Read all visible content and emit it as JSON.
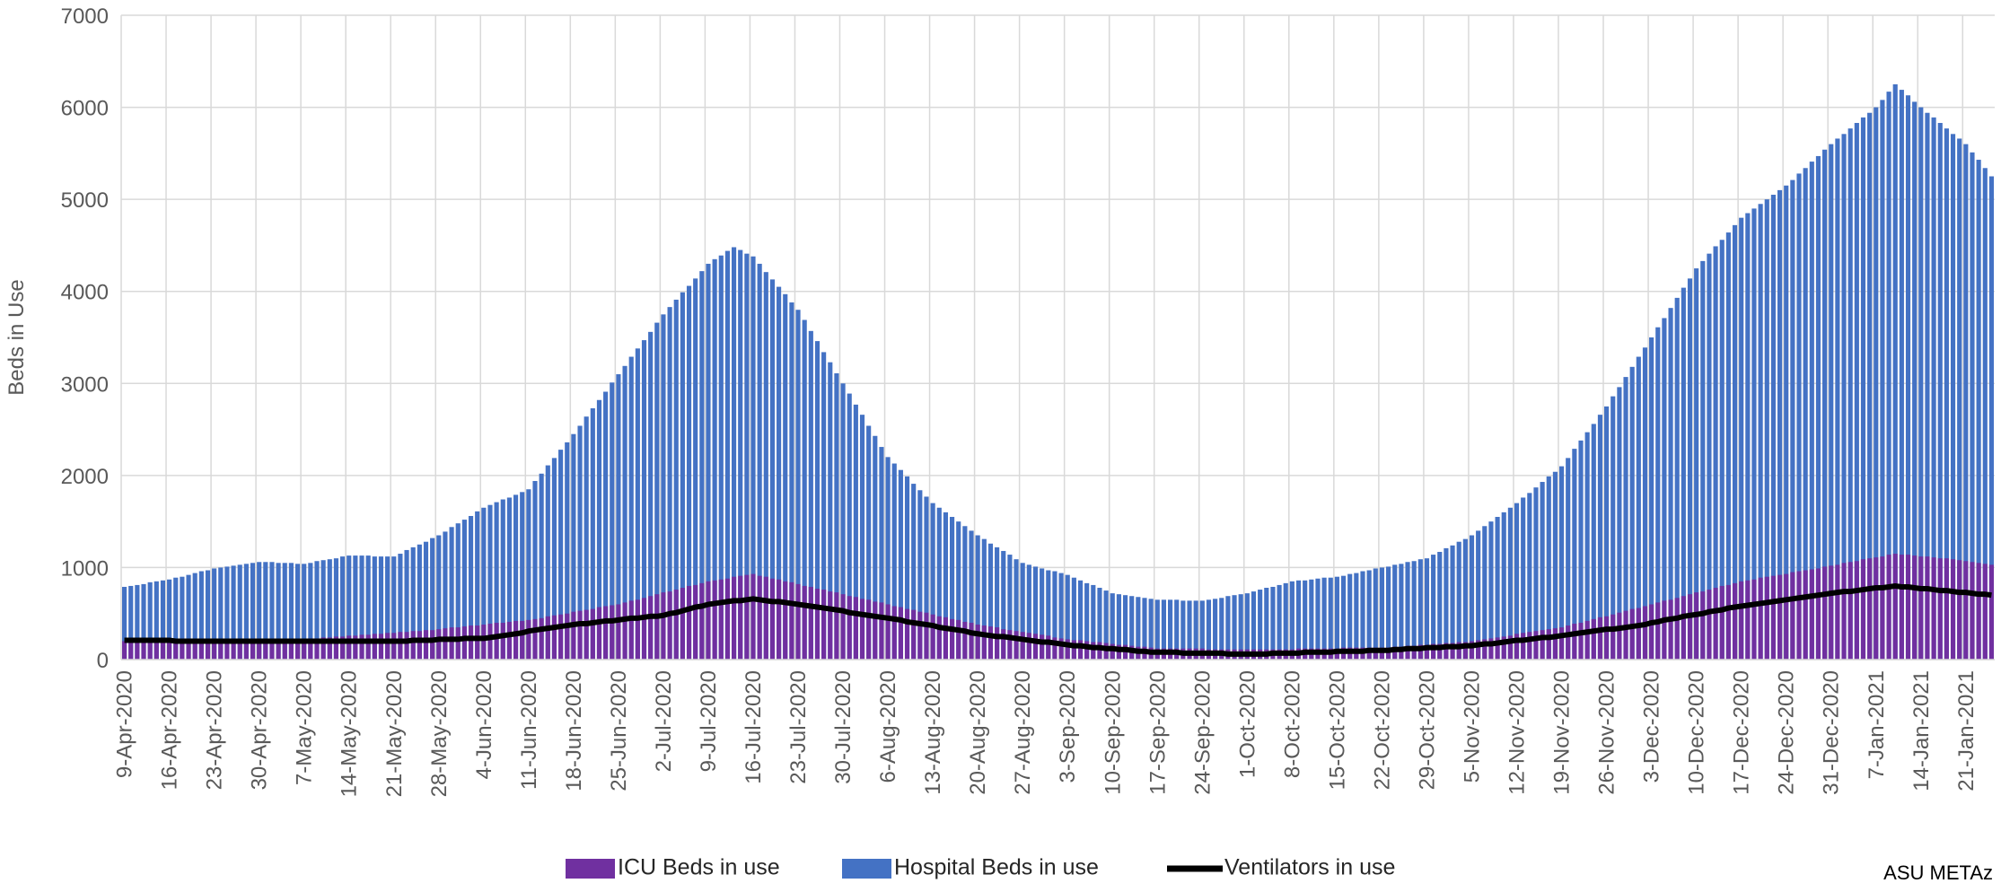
{
  "chart_data": {
    "type": "bar",
    "y_label": "Beds in Use",
    "source": "ASU METAz",
    "ylim": [
      0,
      7000
    ],
    "yticks": [
      0,
      1000,
      2000,
      3000,
      4000,
      5000,
      6000,
      7000
    ],
    "grid": true,
    "legend": "bottom",
    "categories": [
      "9-Apr-2020",
      null,
      null,
      null,
      null,
      null,
      null,
      "16-Apr-2020",
      null,
      null,
      null,
      null,
      null,
      null,
      "23-Apr-2020",
      null,
      null,
      null,
      null,
      null,
      null,
      "30-Apr-2020",
      null,
      null,
      null,
      null,
      null,
      null,
      "7-May-2020",
      null,
      null,
      null,
      null,
      null,
      null,
      "14-May-2020",
      null,
      null,
      null,
      null,
      null,
      null,
      "21-May-2020",
      null,
      null,
      null,
      null,
      null,
      null,
      "28-May-2020",
      null,
      null,
      null,
      null,
      null,
      null,
      "4-Jun-2020",
      null,
      null,
      null,
      null,
      null,
      null,
      "11-Jun-2020",
      null,
      null,
      null,
      null,
      null,
      null,
      "18-Jun-2020",
      null,
      null,
      null,
      null,
      null,
      null,
      "25-Jun-2020",
      null,
      null,
      null,
      null,
      null,
      null,
      "2-Jul-2020",
      null,
      null,
      null,
      null,
      null,
      null,
      "9-Jul-2020",
      null,
      null,
      null,
      null,
      null,
      null,
      "16-Jul-2020",
      null,
      null,
      null,
      null,
      null,
      null,
      "23-Jul-2020",
      null,
      null,
      null,
      null,
      null,
      null,
      "30-Jul-2020",
      null,
      null,
      null,
      null,
      null,
      null,
      "6-Aug-2020",
      null,
      null,
      null,
      null,
      null,
      null,
      "13-Aug-2020",
      null,
      null,
      null,
      null,
      null,
      null,
      "20-Aug-2020",
      null,
      null,
      null,
      null,
      null,
      null,
      "27-Aug-2020",
      null,
      null,
      null,
      null,
      null,
      null,
      "3-Sep-2020",
      null,
      null,
      null,
      null,
      null,
      null,
      "10-Sep-2020",
      null,
      null,
      null,
      null,
      null,
      null,
      "17-Sep-2020",
      null,
      null,
      null,
      null,
      null,
      null,
      "24-Sep-2020",
      null,
      null,
      null,
      null,
      null,
      null,
      "1-Oct-2020",
      null,
      null,
      null,
      null,
      null,
      null,
      "8-Oct-2020",
      null,
      null,
      null,
      null,
      null,
      null,
      "15-Oct-2020",
      null,
      null,
      null,
      null,
      null,
      null,
      "22-Oct-2020",
      null,
      null,
      null,
      null,
      null,
      null,
      "29-Oct-2020",
      null,
      null,
      null,
      null,
      null,
      null,
      "5-Nov-2020",
      null,
      null,
      null,
      null,
      null,
      null,
      "12-Nov-2020",
      null,
      null,
      null,
      null,
      null,
      null,
      "19-Nov-2020",
      null,
      null,
      null,
      null,
      null,
      null,
      "26-Nov-2020",
      null,
      null,
      null,
      null,
      null,
      null,
      "3-Dec-2020",
      null,
      null,
      null,
      null,
      null,
      null,
      "10-Dec-2020",
      null,
      null,
      null,
      null,
      null,
      null,
      "17-Dec-2020",
      null,
      null,
      null,
      null,
      null,
      null,
      "24-Dec-2020",
      null,
      null,
      null,
      null,
      null,
      null,
      "31-Dec-2020",
      null,
      null,
      null,
      null,
      null,
      null,
      "7-Jan-2021",
      null,
      null,
      null,
      null,
      null,
      null,
      "14-Jan-2021",
      null,
      null,
      null,
      null,
      null,
      null,
      "21-Jan-2021",
      null,
      null,
      null,
      null
    ],
    "series": [
      {
        "name": "ICU Beds in use",
        "color": "#7030a0",
        "kind": "bar",
        "values": [
          200,
          200,
          200,
          200,
          200,
          200,
          200,
          200,
          200,
          200,
          200,
          200,
          200,
          200,
          210,
          210,
          210,
          210,
          210,
          210,
          210,
          220,
          220,
          220,
          220,
          220,
          220,
          220,
          220,
          230,
          230,
          240,
          240,
          250,
          250,
          260,
          260,
          270,
          270,
          280,
          280,
          290,
          290,
          300,
          300,
          310,
          310,
          320,
          320,
          330,
          340,
          350,
          350,
          360,
          370,
          370,
          380,
          390,
          400,
          400,
          410,
          420,
          420,
          430,
          440,
          450,
          470,
          480,
          490,
          500,
          520,
          530,
          540,
          550,
          570,
          580,
          590,
          600,
          620,
          640,
          650,
          670,
          690,
          710,
          730,
          740,
          760,
          780,
          800,
          810,
          830,
          850,
          860,
          870,
          880,
          900,
          910,
          920,
          930,
          910,
          900,
          880,
          870,
          850,
          840,
          820,
          800,
          790,
          770,
          760,
          740,
          730,
          710,
          690,
          680,
          660,
          650,
          630,
          620,
          600,
          580,
          570,
          550,
          540,
          520,
          510,
          490,
          470,
          460,
          440,
          430,
          410,
          400,
          380,
          370,
          360,
          350,
          330,
          320,
          310,
          300,
          290,
          280,
          270,
          260,
          240,
          230,
          220,
          210,
          210,
          200,
          190,
          190,
          180,
          170,
          160,
          160,
          150,
          140,
          140,
          130,
          120,
          120,
          120,
          120,
          120,
          120,
          120,
          120,
          110,
          110,
          110,
          110,
          110,
          110,
          110,
          110,
          110,
          110,
          110,
          110,
          110,
          110,
          120,
          120,
          120,
          120,
          120,
          120,
          120,
          130,
          130,
          130,
          130,
          130,
          130,
          130,
          130,
          140,
          140,
          150,
          150,
          160,
          160,
          170,
          170,
          180,
          180,
          190,
          190,
          200,
          210,
          220,
          230,
          240,
          250,
          260,
          280,
          290,
          300,
          310,
          320,
          330,
          340,
          350,
          370,
          390,
          400,
          420,
          440,
          460,
          470,
          490,
          510,
          530,
          550,
          560,
          580,
          600,
          620,
          640,
          650,
          670,
          690,
          710,
          730,
          740,
          760,
          780,
          800,
          810,
          830,
          850,
          860,
          870,
          890,
          900,
          910,
          920,
          930,
          950,
          960,
          970,
          980,
          990,
          1010,
          1020,
          1030,
          1050,
          1060,
          1070,
          1090,
          1100,
          1110,
          1120,
          1140,
          1150,
          1140,
          1140,
          1130,
          1120,
          1120,
          1110,
          1100,
          1100,
          1090,
          1080,
          1070,
          1060,
          1050,
          1040,
          1030
        ]
      },
      {
        "name": "Hospital Beds in use",
        "color": "#4472c4",
        "kind": "bar",
        "values": [
          790,
          800,
          810,
          820,
          840,
          850,
          860,
          870,
          890,
          900,
          920,
          940,
          960,
          970,
          990,
          1000,
          1010,
          1020,
          1030,
          1040,
          1050,
          1060,
          1060,
          1060,
          1050,
          1050,
          1050,
          1040,
          1040,
          1050,
          1070,
          1080,
          1090,
          1100,
          1120,
          1130,
          1130,
          1130,
          1130,
          1120,
          1120,
          1120,
          1120,
          1150,
          1190,
          1220,
          1250,
          1280,
          1320,
          1350,
          1390,
          1440,
          1480,
          1520,
          1560,
          1610,
          1650,
          1680,
          1710,
          1740,
          1760,
          1790,
          1820,
          1850,
          1940,
          2020,
          2110,
          2190,
          2280,
          2360,
          2450,
          2540,
          2640,
          2730,
          2820,
          2910,
          3010,
          3100,
          3190,
          3290,
          3380,
          3470,
          3560,
          3660,
          3750,
          3830,
          3910,
          3990,
          4060,
          4140,
          4220,
          4300,
          4350,
          4390,
          4440,
          4480,
          4450,
          4410,
          4380,
          4300,
          4210,
          4130,
          4050,
          3970,
          3880,
          3800,
          3690,
          3570,
          3460,
          3340,
          3230,
          3110,
          3000,
          2890,
          2770,
          2660,
          2540,
          2430,
          2310,
          2200,
          2130,
          2060,
          1990,
          1910,
          1840,
          1770,
          1700,
          1650,
          1600,
          1550,
          1500,
          1450,
          1400,
          1350,
          1310,
          1260,
          1220,
          1180,
          1140,
          1090,
          1050,
          1030,
          1010,
          990,
          970,
          960,
          940,
          920,
          890,
          860,
          830,
          810,
          780,
          750,
          720,
          710,
          700,
          690,
          680,
          670,
          660,
          650,
          650,
          650,
          650,
          640,
          640,
          640,
          640,
          650,
          660,
          670,
          690,
          700,
          710,
          720,
          740,
          760,
          780,
          790,
          810,
          830,
          850,
          860,
          860,
          870,
          880,
          890,
          890,
          900,
          910,
          930,
          940,
          960,
          970,
          990,
          1000,
          1010,
          1030,
          1040,
          1060,
          1070,
          1090,
          1100,
          1140,
          1170,
          1210,
          1240,
          1280,
          1310,
          1350,
          1400,
          1450,
          1500,
          1550,
          1600,
          1650,
          1700,
          1760,
          1810,
          1870,
          1930,
          1990,
          2040,
          2100,
          2190,
          2290,
          2380,
          2470,
          2560,
          2660,
          2750,
          2860,
          2960,
          3070,
          3180,
          3290,
          3390,
          3500,
          3610,
          3710,
          3820,
          3930,
          4040,
          4140,
          4250,
          4330,
          4410,
          4490,
          4560,
          4640,
          4720,
          4800,
          4850,
          4900,
          4950,
          5000,
          5050,
          5100,
          5150,
          5210,
          5280,
          5340,
          5410,
          5470,
          5540,
          5600,
          5660,
          5710,
          5770,
          5830,
          5890,
          5940,
          6000,
          6080,
          6170,
          6250,
          6190,
          6130,
          6060,
          6000,
          5940,
          5890,
          5830,
          5770,
          5710,
          5660,
          5600,
          5510,
          5430,
          5340,
          5250
        ]
      },
      {
        "name": "Ventilators in use",
        "color": "#000000",
        "kind": "line",
        "values": [
          210,
          210,
          210,
          210,
          210,
          210,
          210,
          210,
          200,
          200,
          200,
          200,
          200,
          200,
          200,
          200,
          200,
          200,
          200,
          200,
          200,
          200,
          200,
          200,
          200,
          200,
          200,
          200,
          200,
          200,
          200,
          200,
          200,
          200,
          200,
          200,
          200,
          200,
          200,
          200,
          200,
          200,
          200,
          200,
          200,
          210,
          210,
          210,
          210,
          220,
          220,
          220,
          220,
          230,
          230,
          230,
          230,
          240,
          250,
          260,
          270,
          280,
          290,
          310,
          320,
          330,
          340,
          350,
          360,
          370,
          380,
          390,
          390,
          400,
          410,
          420,
          420,
          430,
          440,
          450,
          450,
          460,
          470,
          470,
          480,
          500,
          510,
          530,
          550,
          570,
          580,
          600,
          610,
          620,
          630,
          640,
          640,
          650,
          660,
          650,
          640,
          630,
          630,
          620,
          610,
          600,
          590,
          580,
          570,
          560,
          550,
          540,
          530,
          510,
          500,
          490,
          480,
          470,
          460,
          450,
          440,
          430,
          410,
          400,
          390,
          380,
          370,
          350,
          340,
          330,
          320,
          310,
          290,
          280,
          270,
          260,
          250,
          250,
          240,
          230,
          220,
          210,
          200,
          190,
          190,
          180,
          170,
          160,
          150,
          150,
          140,
          130,
          130,
          120,
          120,
          110,
          110,
          100,
          90,
          90,
          80,
          80,
          80,
          80,
          80,
          70,
          70,
          70,
          70,
          70,
          70,
          70,
          60,
          60,
          60,
          60,
          60,
          60,
          60,
          70,
          70,
          70,
          70,
          70,
          80,
          80,
          80,
          80,
          80,
          90,
          90,
          90,
          90,
          90,
          100,
          100,
          100,
          100,
          110,
          110,
          120,
          120,
          120,
          130,
          130,
          130,
          140,
          140,
          140,
          150,
          150,
          160,
          170,
          170,
          180,
          190,
          200,
          210,
          210,
          220,
          230,
          240,
          240,
          250,
          260,
          270,
          280,
          290,
          300,
          310,
          320,
          330,
          330,
          340,
          350,
          360,
          370,
          380,
          400,
          410,
          430,
          440,
          450,
          470,
          480,
          490,
          500,
          520,
          530,
          540,
          560,
          570,
          580,
          590,
          600,
          610,
          620,
          630,
          640,
          650,
          660,
          670,
          680,
          690,
          700,
          710,
          720,
          730,
          740,
          740,
          750,
          760,
          770,
          780,
          780,
          790,
          800,
          790,
          790,
          780,
          770,
          770,
          760,
          750,
          750,
          740,
          730,
          730,
          720,
          710,
          710,
          700
        ]
      }
    ]
  }
}
